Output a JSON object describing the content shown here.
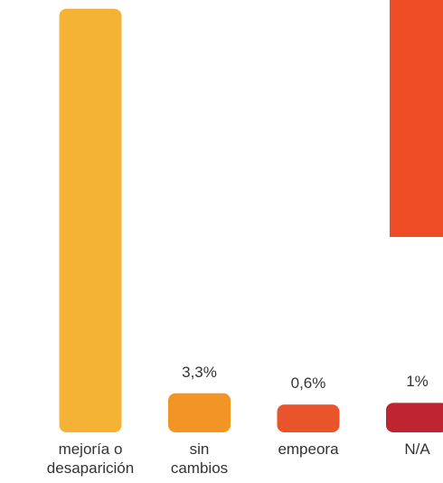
{
  "chart_data": {
    "type": "bar",
    "categories": [
      "mejoría o\ndesaparición",
      "sin\ncambios",
      "empeora",
      "N/A"
    ],
    "values": [
      95.1,
      3.3,
      0.6,
      1
    ],
    "value_labels": [
      null,
      "3,3%",
      "0,6%",
      "1%"
    ],
    "colors": [
      "#f5b335",
      "#f29525",
      "#e9542b",
      "#bf2431"
    ]
  }
}
